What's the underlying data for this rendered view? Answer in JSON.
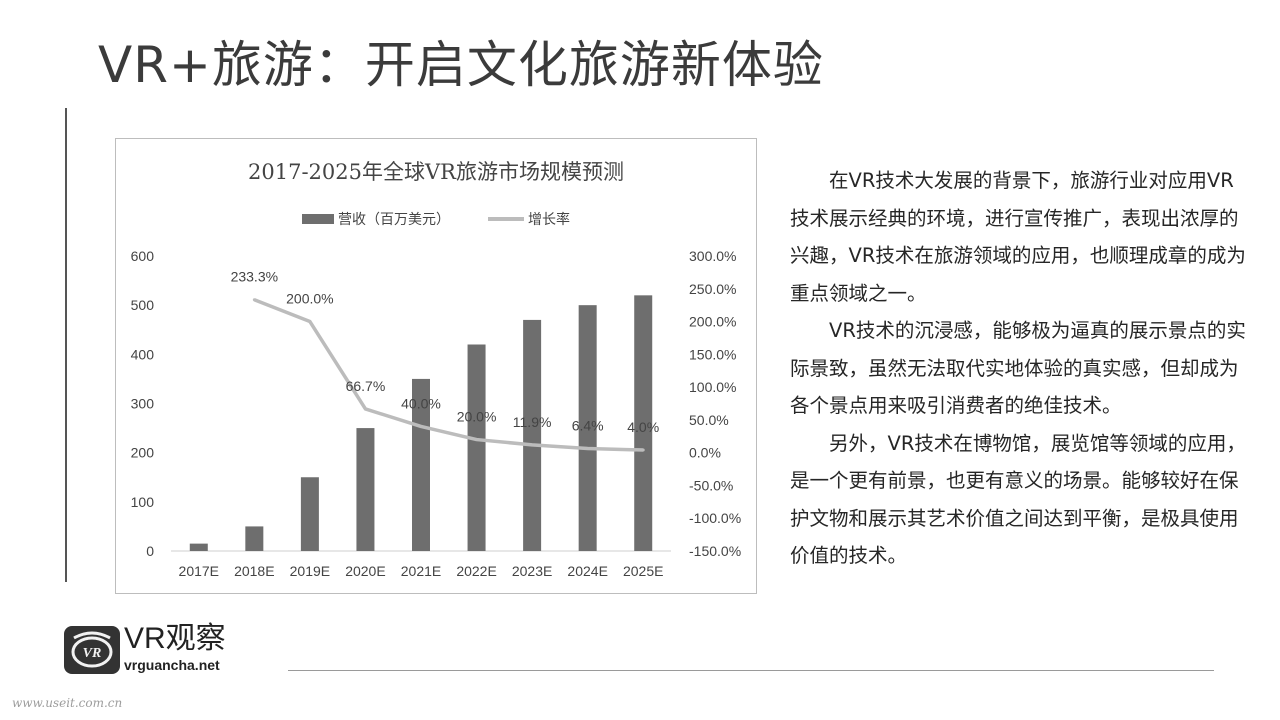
{
  "slide": {
    "title": "VR+旅游：开启文化旅游新体验"
  },
  "chart_data": {
    "type": "bar",
    "title": "2017-2025年全球VR旅游市场规模预测",
    "categories": [
      "2017E",
      "2018E",
      "2019E",
      "2020E",
      "2021E",
      "2022E",
      "2023E",
      "2024E",
      "2025E"
    ],
    "series": [
      {
        "name": "营收（百万美元）",
        "type": "bar",
        "axis": "left",
        "color": "#6e6e6e",
        "values": [
          15,
          50,
          150,
          250,
          350,
          420,
          470,
          500,
          520
        ]
      },
      {
        "name": "增长率",
        "type": "line",
        "axis": "right",
        "color": "#bcbcbc",
        "values": [
          null,
          233.3,
          200.0,
          66.7,
          40.0,
          20.0,
          11.9,
          6.4,
          4.0
        ],
        "labels": [
          "",
          "233.3%",
          "200.0%",
          "66.7%",
          "40.0%",
          "20.0%",
          "11.9%",
          "6.4%",
          "4.0%"
        ]
      }
    ],
    "y_left": {
      "ylim": [
        0,
        600
      ],
      "ticks": [
        "0",
        "100",
        "200",
        "300",
        "400",
        "500",
        "600"
      ]
    },
    "y_right": {
      "ylim": [
        -150,
        300
      ],
      "ticks": [
        "-150.0%",
        "-100.0%",
        "-50.0%",
        "0.0%",
        "50.0%",
        "100.0%",
        "150.0%",
        "200.0%",
        "250.0%",
        "300.0%"
      ]
    },
    "grid": false,
    "legend": "top-center"
  },
  "article": {
    "paragraphs": [
      "在VR技术大发展的背景下，旅游行业对应用VR技术展示经典的环境，进行宣传推广，表现出浓厚的兴趣，VR技术在旅游领域的应用，也顺理成章的成为重点领域之一。",
      "VR技术的沉浸感，能够极为逼真的展示景点的实际景致，虽然无法取代实地体验的真实感，但却成为各个景点用来吸引消费者的绝佳技术。",
      "另外，VR技术在博物馆，展览馆等领域的应用，是一个更有前景，也更有意义的场景。能够较好在保护文物和展示其艺术价值之间达到平衡，是极具使用价值的技术。"
    ]
  },
  "logo": {
    "name": "VR观察",
    "url": "vrguancha.net",
    "icon": "vr-logo-icon"
  },
  "watermark": "www.useit.com.cn"
}
